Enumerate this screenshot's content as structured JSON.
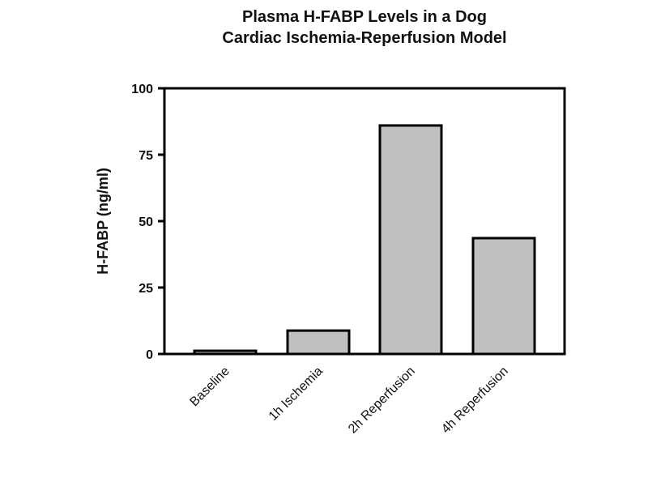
{
  "chart_data": {
    "type": "bar",
    "title_lines": [
      "Plasma H-FABP Levels in a Dog",
      "Cardiac Ischemia-Reperfusion Model"
    ],
    "categories": [
      "Baseline",
      "1h Ischemia",
      "2h Reperfusion",
      "4h Reperfusion"
    ],
    "values": [
      1.2,
      8.8,
      86,
      43.6
    ],
    "xlabel": "",
    "ylabel": "H-FABP (ng/ml)",
    "ylim": [
      0,
      100
    ],
    "yticks": [
      0,
      25,
      50,
      75,
      100
    ],
    "grid": false,
    "bar_color": "#c0c0c0",
    "bar_edge_color": "#000000"
  }
}
